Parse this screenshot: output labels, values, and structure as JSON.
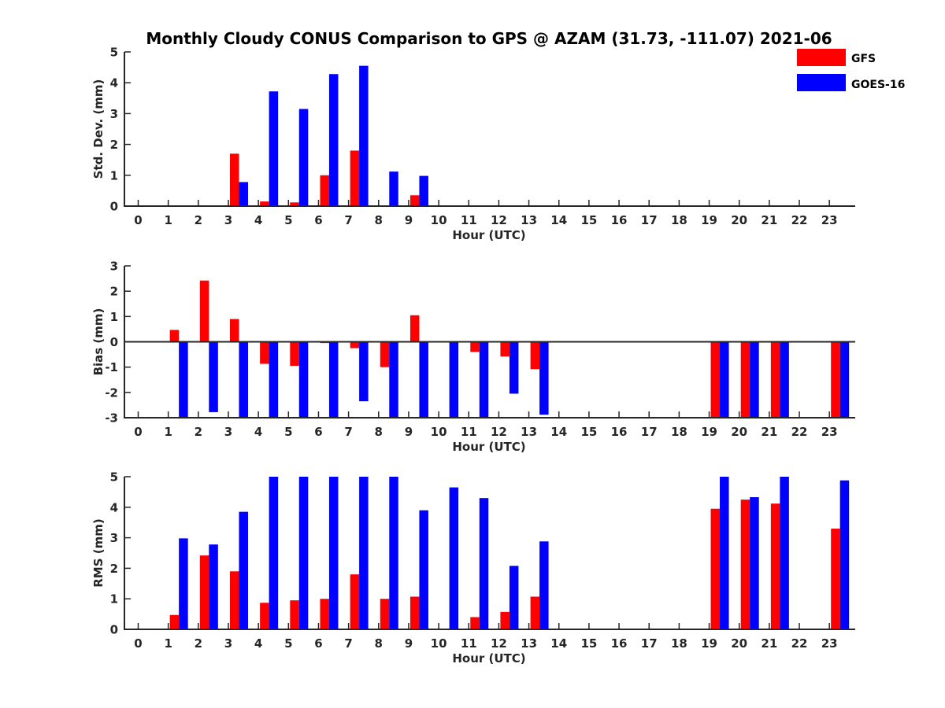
{
  "title": "Monthly Cloudy CONUS Comparison to GPS @ AZAM (31.73, -111.07) 2021-06",
  "colors": {
    "gfs": "#ff0000",
    "goes": "#0000ff",
    "axis": "#262626"
  },
  "chart_data": [
    {
      "type": "bar",
      "ylabel": "Std. Dev. (mm)",
      "xlabel": "Hour (UTC)",
      "ylim": [
        0,
        5
      ],
      "yticks": [
        0,
        1,
        2,
        3,
        4,
        5
      ],
      "categories": [
        0,
        1,
        2,
        3,
        4,
        5,
        6,
        7,
        8,
        9,
        10,
        11,
        12,
        13,
        14,
        15,
        16,
        17,
        18,
        19,
        20,
        21,
        22,
        23
      ],
      "series": [
        {
          "name": "GFS",
          "values": [
            null,
            null,
            null,
            1.7,
            0.15,
            0.12,
            1.0,
            1.8,
            0.02,
            0.35,
            null,
            null,
            null,
            null,
            null,
            null,
            null,
            null,
            null,
            null,
            null,
            null,
            null,
            null
          ]
        },
        {
          "name": "GOES-16",
          "values": [
            null,
            null,
            null,
            0.78,
            3.72,
            3.15,
            4.28,
            4.55,
            1.12,
            0.98,
            null,
            null,
            null,
            null,
            null,
            null,
            null,
            null,
            null,
            null,
            null,
            null,
            null,
            null
          ]
        }
      ]
    },
    {
      "type": "bar",
      "ylabel": "Bias (mm)",
      "xlabel": "Hour (UTC)",
      "ylim": [
        -3,
        3
      ],
      "yticks": [
        -3,
        -2,
        -1,
        0,
        1,
        2,
        3
      ],
      "zero_line": true,
      "categories": [
        0,
        1,
        2,
        3,
        4,
        5,
        6,
        7,
        8,
        9,
        10,
        11,
        12,
        13,
        14,
        15,
        16,
        17,
        18,
        19,
        20,
        21,
        22,
        23
      ],
      "series": [
        {
          "name": "GFS",
          "values": [
            null,
            0.47,
            2.42,
            0.9,
            -0.87,
            -0.95,
            -0.05,
            -0.25,
            -1.0,
            1.05,
            null,
            -0.4,
            -0.58,
            -1.08,
            null,
            null,
            null,
            null,
            null,
            -3.0,
            -3.0,
            -3.0,
            null,
            -3.0
          ]
        },
        {
          "name": "GOES-16",
          "values": [
            null,
            -3.0,
            -2.78,
            -3.0,
            -3.0,
            -3.0,
            -3.0,
            -2.35,
            -3.0,
            -3.0,
            -3.0,
            -3.0,
            -2.05,
            -2.88,
            null,
            null,
            null,
            null,
            null,
            -3.0,
            -3.0,
            -3.0,
            null,
            -3.0
          ]
        }
      ]
    },
    {
      "type": "bar",
      "ylabel": "RMS (mm)",
      "xlabel": "Hour (UTC)",
      "ylim": [
        0,
        5
      ],
      "yticks": [
        0,
        1,
        2,
        3,
        4,
        5
      ],
      "categories": [
        0,
        1,
        2,
        3,
        4,
        5,
        6,
        7,
        8,
        9,
        10,
        11,
        12,
        13,
        14,
        15,
        16,
        17,
        18,
        19,
        20,
        21,
        22,
        23
      ],
      "series": [
        {
          "name": "GFS",
          "values": [
            null,
            0.47,
            2.42,
            1.9,
            0.87,
            0.95,
            1.0,
            1.8,
            1.0,
            1.07,
            null,
            0.4,
            0.57,
            1.07,
            null,
            null,
            null,
            null,
            null,
            3.95,
            4.25,
            4.12,
            null,
            3.3
          ]
        },
        {
          "name": "GOES-16",
          "values": [
            null,
            2.98,
            2.78,
            3.85,
            5.0,
            5.0,
            5.0,
            5.0,
            5.0,
            3.9,
            4.65,
            4.3,
            2.08,
            2.88,
            null,
            null,
            null,
            null,
            null,
            5.0,
            4.33,
            5.0,
            null,
            4.88
          ]
        }
      ]
    }
  ],
  "legend": [
    {
      "label": "GFS",
      "color": "#ff0000"
    },
    {
      "label": "GOES-16",
      "color": "#0000ff"
    }
  ]
}
